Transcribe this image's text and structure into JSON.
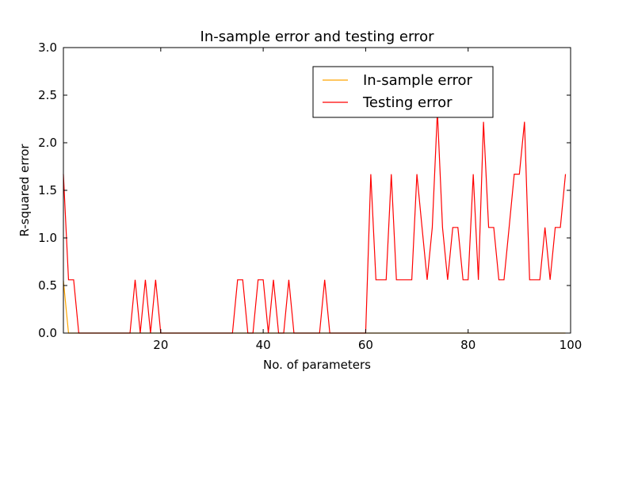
{
  "chart_data": {
    "type": "line",
    "title": "In-sample error and testing error",
    "xlabel": "No. of parameters",
    "ylabel": "R-squared error",
    "xlim": [
      1,
      100
    ],
    "ylim": [
      0.0,
      3.0
    ],
    "x_ticks": [
      20,
      40,
      60,
      80,
      100
    ],
    "x_tick_labels": [
      "20",
      "40",
      "60",
      "80",
      "100"
    ],
    "y_ticks": [
      0.0,
      0.5,
      1.0,
      1.5,
      2.0,
      2.5,
      3.0
    ],
    "y_tick_labels": [
      "0.0",
      "0.5",
      "1.0",
      "1.5",
      "2.0",
      "2.5",
      "3.0"
    ],
    "grid": false,
    "legend": "upper right",
    "x": [
      1,
      2,
      3,
      4,
      5,
      6,
      7,
      8,
      9,
      10,
      11,
      12,
      13,
      14,
      15,
      16,
      17,
      18,
      19,
      20,
      21,
      22,
      23,
      24,
      25,
      26,
      27,
      28,
      29,
      30,
      31,
      32,
      33,
      34,
      35,
      36,
      37,
      38,
      39,
      40,
      41,
      42,
      43,
      44,
      45,
      46,
      47,
      48,
      49,
      50,
      51,
      52,
      53,
      54,
      55,
      56,
      57,
      58,
      59,
      60,
      61,
      62,
      63,
      64,
      65,
      66,
      67,
      68,
      69,
      70,
      71,
      72,
      73,
      74,
      75,
      76,
      77,
      78,
      79,
      80,
      81,
      82,
      83,
      84,
      85,
      86,
      87,
      88,
      89,
      90,
      91,
      92,
      93,
      94,
      95,
      96,
      97,
      98,
      99
    ],
    "series": [
      {
        "name": "In-sample error",
        "color": "#ffa500",
        "values": [
          0.55,
          0,
          0,
          0,
          0,
          0,
          0,
          0,
          0,
          0,
          0,
          0,
          0,
          0,
          0,
          0,
          0,
          0,
          0,
          0,
          0,
          0,
          0,
          0,
          0,
          0,
          0,
          0,
          0,
          0,
          0,
          0,
          0,
          0,
          0,
          0,
          0,
          0,
          0,
          0,
          0,
          0,
          0,
          0,
          0,
          0,
          0,
          0,
          0,
          0,
          0,
          0,
          0,
          0,
          0,
          0,
          0,
          0,
          0,
          0,
          0,
          0,
          0,
          0,
          0,
          0,
          0,
          0,
          0,
          0,
          0,
          0,
          0,
          0,
          0,
          0,
          0,
          0,
          0,
          0,
          0,
          0,
          0,
          0,
          0,
          0,
          0,
          0,
          0,
          0,
          0,
          0,
          0,
          0,
          0,
          0,
          0,
          0,
          0
        ]
      },
      {
        "name": "Testing error",
        "color": "#ff0000",
        "values": [
          1.67,
          0.56,
          0.56,
          0,
          0,
          0,
          0,
          0,
          0,
          0,
          0,
          0,
          0,
          0,
          0.56,
          0,
          0.56,
          0,
          0.56,
          0,
          0,
          0,
          0,
          0,
          0,
          0,
          0,
          0,
          0,
          0,
          0,
          0,
          0,
          0,
          0.56,
          0.56,
          0,
          0,
          0.56,
          0.56,
          0,
          0.56,
          0,
          0,
          0.56,
          0,
          0,
          0,
          0,
          0,
          0,
          0.56,
          0,
          0,
          0,
          0,
          0,
          0,
          0,
          0,
          1.67,
          0.56,
          0.56,
          0.56,
          1.67,
          0.56,
          0.56,
          0.56,
          0.56,
          1.67,
          1.11,
          0.56,
          1.11,
          2.33,
          1.11,
          0.56,
          1.11,
          1.11,
          0.56,
          0.56,
          1.67,
          0.56,
          2.22,
          1.11,
          1.11,
          0.56,
          0.56,
          1.11,
          1.67,
          1.67,
          2.22,
          0.56,
          0.56,
          0.56,
          1.11,
          0.56,
          1.11,
          1.11,
          1.67
        ]
      }
    ]
  }
}
